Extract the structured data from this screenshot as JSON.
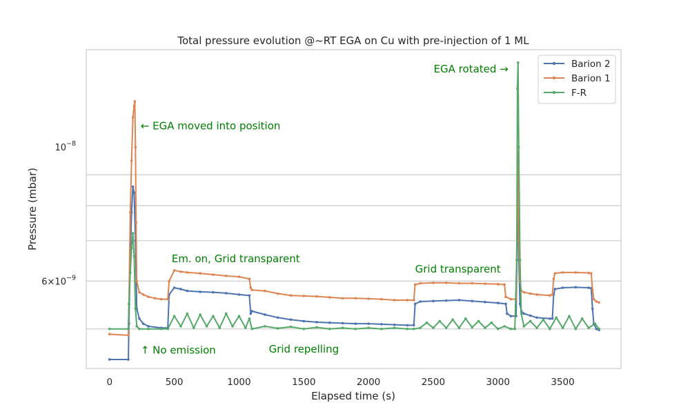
{
  "chart_data": {
    "type": "line",
    "title": "Total pressure evolution @~RT EGA on Cu with pre-injection of 1 ML",
    "xlabel": "Elapsed time (s)",
    "ylabel": "Pressure (mbar)",
    "xlim": [
      -180,
      3950
    ],
    "ylim": [
      4.3e-09,
      1.45e-08
    ],
    "yscale": "log",
    "grid": true,
    "legend_position": "top-right",
    "x_ticks": [
      0,
      500,
      1000,
      1500,
      2000,
      2500,
      3000,
      3500
    ],
    "x_tick_labels": [
      "0",
      "500",
      "1000",
      "1500",
      "2000",
      "2500",
      "3000",
      "3500"
    ],
    "y_major_ticks": [
      {
        "value": 1e-08,
        "base": "10",
        "exp": "−8"
      }
    ],
    "y_minor_labeled": [
      {
        "value": 6e-09,
        "mant": "6",
        "base": "10",
        "exp": "−9"
      }
    ],
    "y_gridlines": [
      5e-09,
      6e-09,
      7e-09,
      8e-09,
      9e-09
    ],
    "series": [
      {
        "name": "Barion 2",
        "color": "#4c72b0",
        "x": [
          0,
          145,
          150,
          160,
          170,
          180,
          190,
          200,
          210,
          230,
          260,
          300,
          400,
          450,
          460,
          500,
          550,
          600,
          700,
          800,
          900,
          1000,
          1080,
          1090,
          1100,
          1200,
          1300,
          1400,
          1500,
          1600,
          1700,
          1800,
          1900,
          2000,
          2100,
          2200,
          2300,
          2350,
          2360,
          2400,
          2500,
          2600,
          2700,
          2800,
          2900,
          3000,
          3060,
          3070,
          3100,
          3140,
          3150,
          3155,
          3160,
          3170,
          3180,
          3200,
          3250,
          3300,
          3400,
          3420,
          3430,
          3440,
          3500,
          3600,
          3700,
          3720,
          3730,
          3740,
          3760,
          3780
        ],
        "y": [
          4.45e-09,
          4.45e-09,
          5.1e-09,
          6.6e-09,
          7.8e-09,
          8.6e-09,
          8.4e-09,
          7e-09,
          5.4e-09,
          5.2e-09,
          5.1e-09,
          5.05e-09,
          5.02e-09,
          5.02e-09,
          5.7e-09,
          5.85e-09,
          5.82e-09,
          5.78e-09,
          5.76e-09,
          5.75e-09,
          5.73e-09,
          5.7e-09,
          5.68e-09,
          5.3e-09,
          5.35e-09,
          5.28e-09,
          5.22e-09,
          5.18e-09,
          5.15e-09,
          5.13e-09,
          5.12e-09,
          5.11e-09,
          5.1e-09,
          5.1e-09,
          5.09e-09,
          5.08e-09,
          5.07e-09,
          5.07e-09,
          5.5e-09,
          5.55e-09,
          5.56e-09,
          5.57e-09,
          5.58e-09,
          5.56e-09,
          5.54e-09,
          5.52e-09,
          5.5e-09,
          5.3e-09,
          5.25e-09,
          5.25e-09,
          7.5e-09,
          8.5e-09,
          6.5e-09,
          5.5e-09,
          5.35e-09,
          5.3e-09,
          5.26e-09,
          5.22e-09,
          5.2e-09,
          5.2e-09,
          5.7e-09,
          5.82e-09,
          5.85e-09,
          5.86e-09,
          5.85e-09,
          5.84e-09,
          5.4e-09,
          5.1e-09,
          5e-09,
          4.98e-09
        ]
      },
      {
        "name": "Barion 1",
        "color": "#dd8452",
        "x": [
          0,
          145,
          150,
          160,
          170,
          180,
          190,
          195,
          200,
          205,
          210,
          230,
          260,
          300,
          350,
          400,
          450,
          460,
          500,
          550,
          600,
          700,
          800,
          900,
          1000,
          1080,
          1090,
          1100,
          1200,
          1300,
          1400,
          1500,
          1600,
          1700,
          1800,
          1900,
          2000,
          2100,
          2200,
          2300,
          2350,
          2360,
          2400,
          2500,
          2600,
          2700,
          2800,
          2900,
          3000,
          3050,
          3060,
          3100,
          3140,
          3150,
          3155,
          3160,
          3170,
          3180,
          3200,
          3250,
          3300,
          3400,
          3420,
          3430,
          3440,
          3500,
          3600,
          3700,
          3720,
          3730,
          3740,
          3760,
          3780
        ],
        "y": [
          4.9e-09,
          4.88e-09,
          5.5e-09,
          7.8e-09,
          9.5e-09,
          1.12e-08,
          1.17e-08,
          1.19e-08,
          1e-08,
          7.5e-09,
          6e-09,
          5.75e-09,
          5.7e-09,
          5.65e-09,
          5.62e-09,
          5.6e-09,
          5.6e-09,
          6e-09,
          6.25e-09,
          6.22e-09,
          6.2e-09,
          6.18e-09,
          6.15e-09,
          6.12e-09,
          6.1e-09,
          6.05e-09,
          5.85e-09,
          5.8e-09,
          5.78e-09,
          5.72e-09,
          5.68e-09,
          5.67e-09,
          5.66e-09,
          5.64e-09,
          5.62e-09,
          5.62e-09,
          5.61e-09,
          5.6e-09,
          5.58e-09,
          5.58e-09,
          5.58e-09,
          5.92e-09,
          5.95e-09,
          5.96e-09,
          5.96e-09,
          5.95e-09,
          5.95e-09,
          5.94e-09,
          5.93e-09,
          5.92e-09,
          5.65e-09,
          5.6e-09,
          5.6e-09,
          8.5e-09,
          9.8e-09,
          7e-09,
          6e-09,
          5.78e-09,
          5.75e-09,
          5.72e-09,
          5.7e-09,
          5.68e-09,
          5.7e-09,
          6.05e-09,
          6.18e-09,
          6.2e-09,
          6.2e-09,
          6.19e-09,
          6.18e-09,
          5.8e-09,
          5.6e-09,
          5.55e-09,
          5.53e-09
        ]
      },
      {
        "name": "F-R",
        "color": "#55a868",
        "x": [
          0,
          145,
          150,
          160,
          170,
          180,
          190,
          200,
          210,
          230,
          300,
          400,
          450,
          500,
          550,
          600,
          650,
          700,
          750,
          800,
          850,
          900,
          950,
          1000,
          1050,
          1080,
          1100,
          1200,
          1300,
          1400,
          1500,
          1600,
          1700,
          1800,
          1900,
          2000,
          2100,
          2200,
          2300,
          2350,
          2400,
          2450,
          2500,
          2550,
          2600,
          2650,
          2700,
          2750,
          2800,
          2850,
          2900,
          2950,
          3000,
          3050,
          3100,
          3130,
          3145,
          3150,
          3155,
          3160,
          3170,
          3180,
          3200,
          3250,
          3300,
          3350,
          3400,
          3450,
          3500,
          3550,
          3600,
          3650,
          3700,
          3750,
          3780
        ],
        "y": [
          5e-09,
          5e-09,
          5.5e-09,
          6.2e-09,
          6.8e-09,
          7.2e-09,
          6.6e-09,
          5.4e-09,
          5.05e-09,
          5e-09,
          5e-09,
          5e-09,
          5e-09,
          5.25e-09,
          5.05e-09,
          5.3e-09,
          5.02e-09,
          5.28e-09,
          5.05e-09,
          5.25e-09,
          5.02e-09,
          5.3e-09,
          5.05e-09,
          5.25e-09,
          5.02e-09,
          5.2e-09,
          5e-09,
          5.05e-09,
          5.01e-09,
          5.04e-09,
          5e-09,
          5.03e-09,
          5e-09,
          5.02e-09,
          5e-09,
          5.02e-09,
          5e-09,
          5.02e-09,
          5e-09,
          5e-09,
          5.02e-09,
          5.12e-09,
          5.02e-09,
          5.15e-09,
          5.02e-09,
          5.18e-09,
          5.02e-09,
          5.2e-09,
          5.03e-09,
          5.15e-09,
          5.02e-09,
          5.12e-09,
          5e-09,
          5.05e-09,
          5e-09,
          5e-09,
          6.5e-09,
          1.25e-08,
          1.38e-08,
          1e-08,
          6.5e-09,
          5.3e-09,
          5.05e-09,
          5.15e-09,
          5.02e-09,
          5.18e-09,
          5e-09,
          5.22e-09,
          5.02e-09,
          5.25e-09,
          5e-09,
          5.2e-09,
          5.02e-09,
          5.1e-09,
          5e-09
        ]
      }
    ],
    "annotations": [
      {
        "text": "← EGA moved into position",
        "x": 240,
        "y": 1.07e-08,
        "anchor": "start"
      },
      {
        "text": "EGA rotated →",
        "x": 3080,
        "y": 1.33e-08,
        "anchor": "end"
      },
      {
        "text": "Em. on, Grid transparent",
        "x": 480,
        "y": 6.45e-09,
        "anchor": "start"
      },
      {
        "text": "Grid transparent",
        "x": 2360,
        "y": 6.2e-09,
        "anchor": "start"
      },
      {
        "text": "↑ No emission",
        "x": 240,
        "y": 4.55e-09,
        "anchor": "start"
      },
      {
        "text": "Grid repelling",
        "x": 1230,
        "y": 4.57e-09,
        "anchor": "start"
      }
    ],
    "annotation_color": "#008000"
  }
}
